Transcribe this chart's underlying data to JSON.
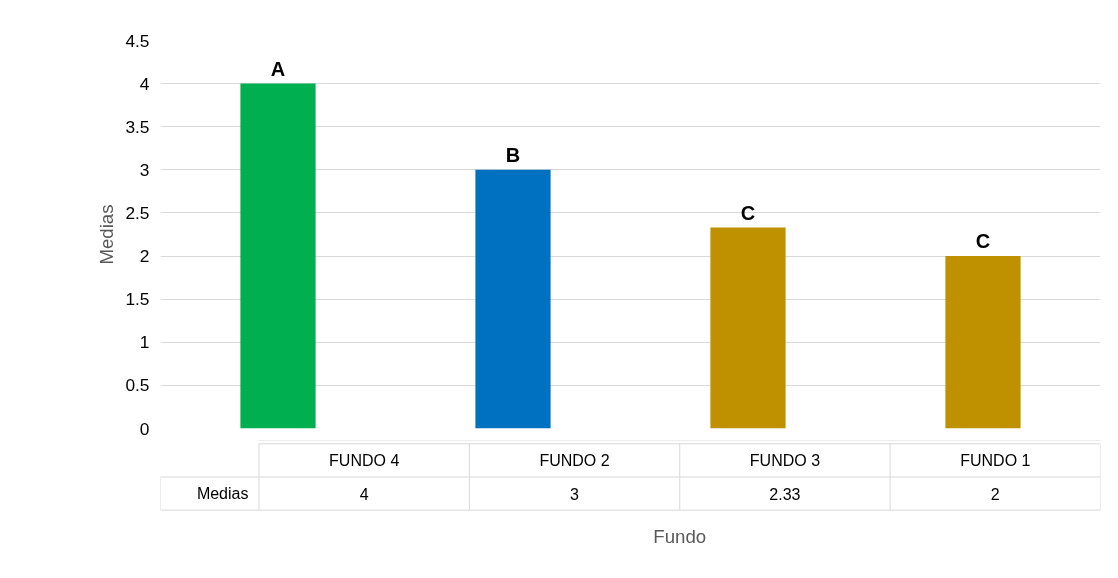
{
  "chart_data": {
    "type": "bar",
    "xlabel": "Fundo",
    "ylabel": "Medias",
    "categories": [
      "FUNDO 4",
      "FUNDO 2",
      "FUNDO 3",
      "FUNDO 1"
    ],
    "series": [
      {
        "name": "Medias",
        "values": [
          4,
          3,
          2.33,
          2
        ],
        "colors": [
          "#00b050",
          "#0070c0",
          "#bf9000",
          "#bf9000"
        ]
      }
    ],
    "ylim": [
      0,
      4.5
    ],
    "yticks": [
      0,
      0.5,
      1,
      1.5,
      2,
      2.5,
      3,
      3.5,
      4,
      4.5
    ],
    "grid": "y",
    "data_labels": true,
    "annotations": [
      "A",
      "B",
      "C",
      "C"
    ]
  }
}
